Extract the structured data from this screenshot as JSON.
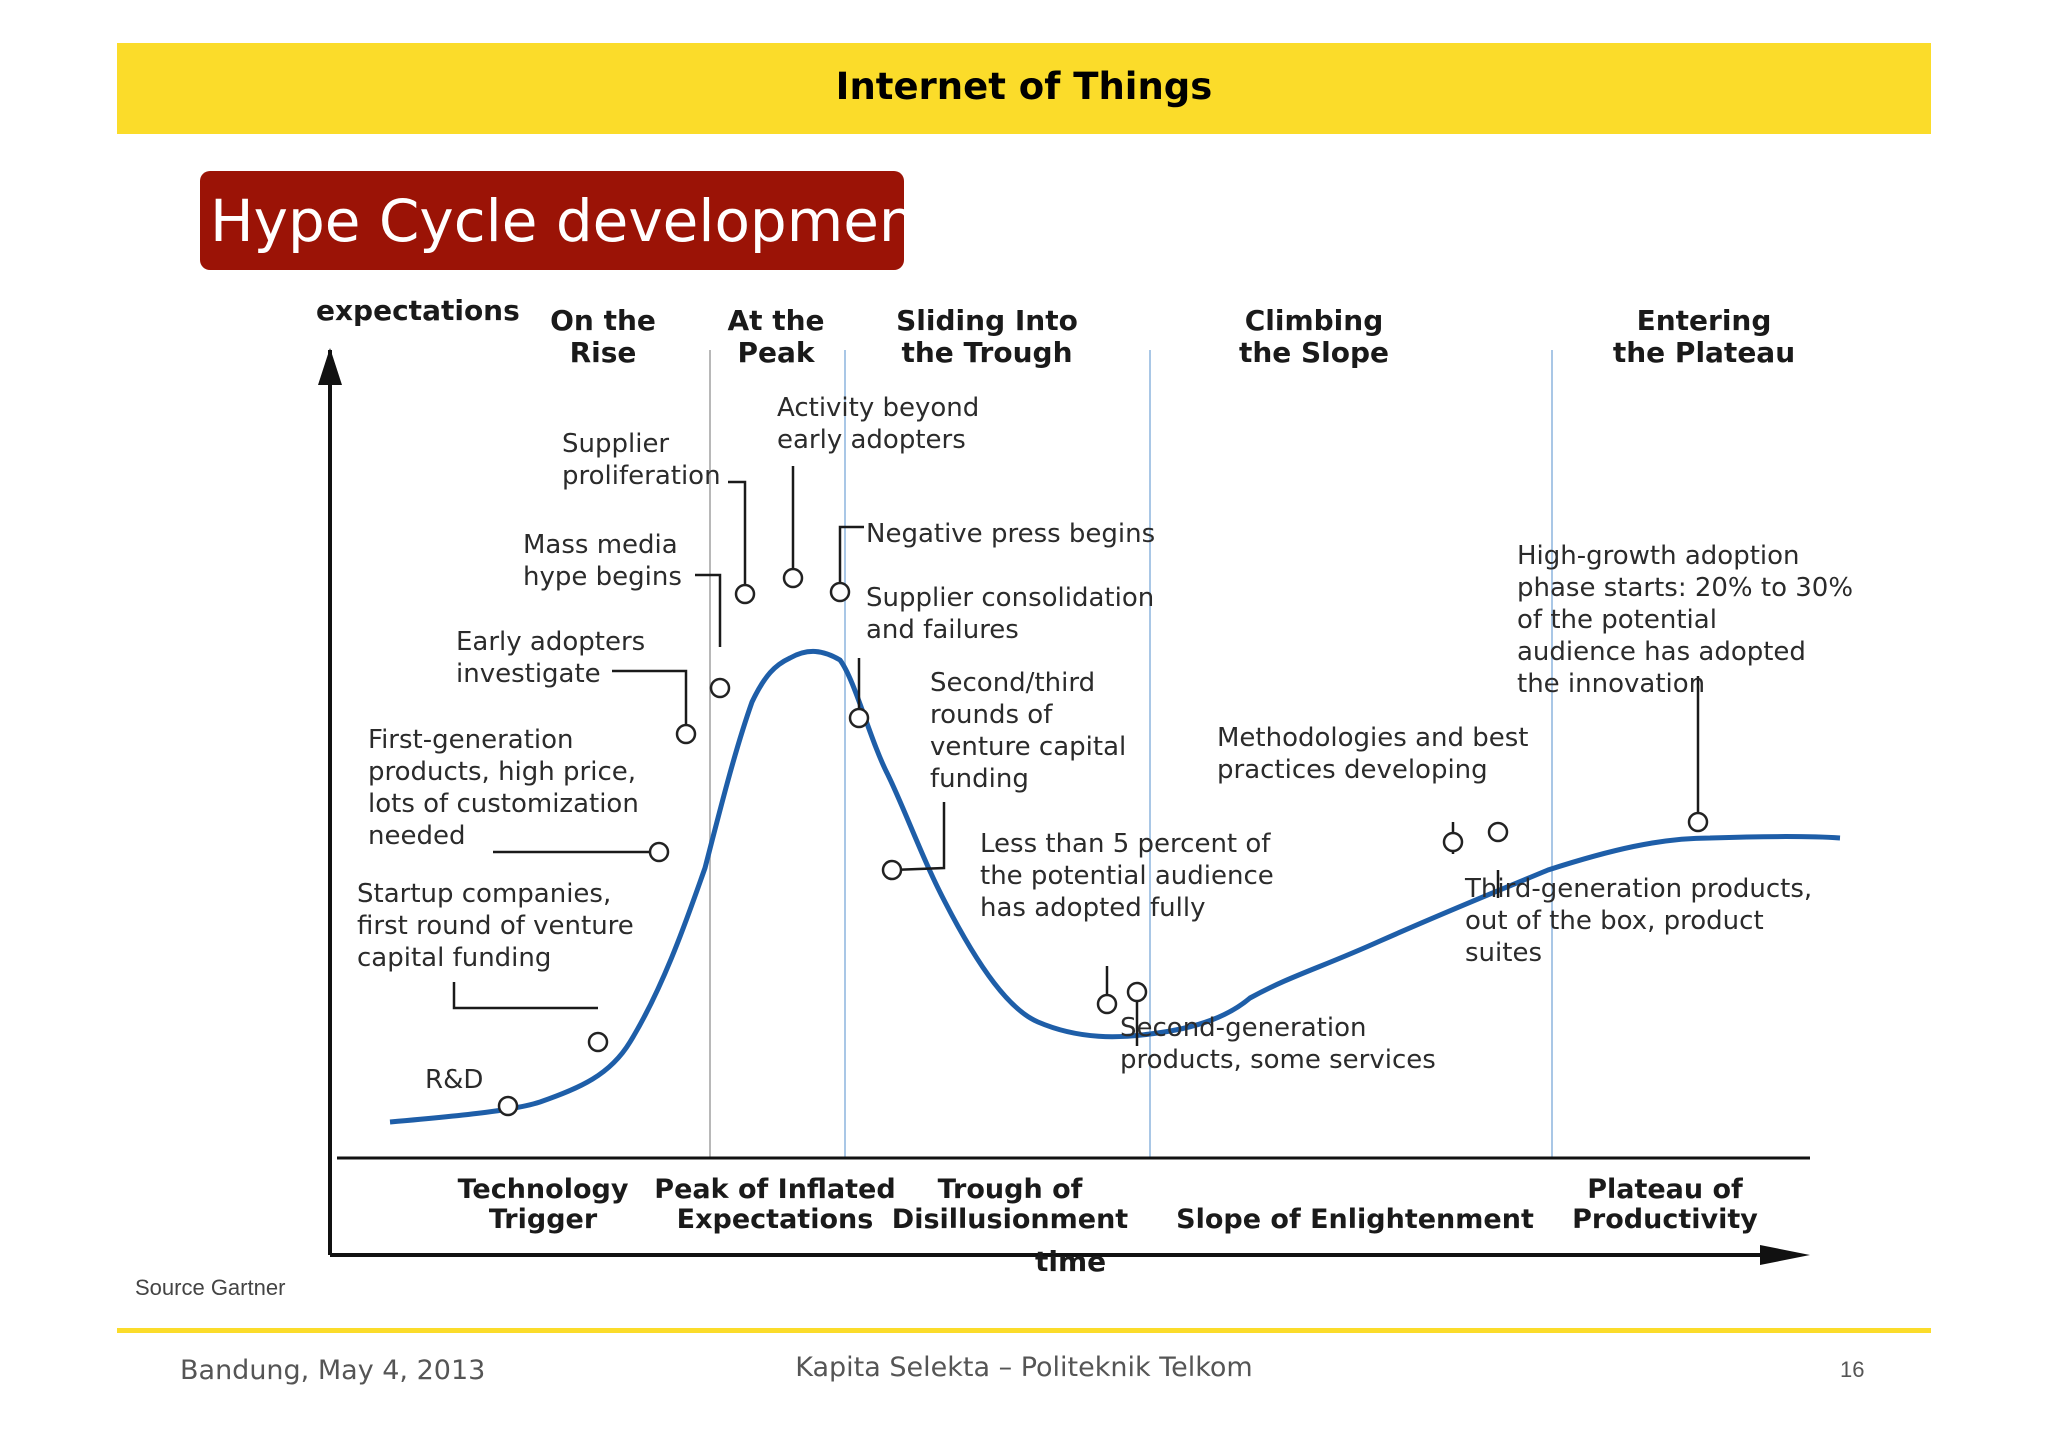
{
  "header": {
    "title": "Internet of Things"
  },
  "slide": {
    "title": "Hype Cycle development"
  },
  "diagram": {
    "y_axis_label": "expectations",
    "x_axis_label": "time",
    "top_headers": [
      "On the|Rise",
      "At the|Peak",
      "Sliding Into|the Trough",
      "Climbing|the Slope",
      "Entering|the Plateau"
    ],
    "phases": [
      "Technology|Trigger",
      "Peak of Inflated|Expectations",
      "Trough of|Disillusionment",
      "Slope of Enlightenment",
      "Plateau of|Productivity"
    ],
    "annotations": [
      "R&D",
      "Startup companies,|first round of venture|capital funding",
      "First-generation|products, high price,|lots of customization|needed",
      "Early adopters|investigate",
      "Mass media|hype begins",
      "Supplier|proliferation",
      "Activity beyond|early adopters",
      "Negative press begins",
      "Supplier consolidation|and failures",
      "Second/third|rounds of|venture capital|funding",
      "Less than 5 percent of|the potential audience|has adopted fully",
      "Second-generation|products, some services",
      "Methodologies and best|practices developing",
      "Third-generation products,|out of the box, product|suites",
      "High-growth adoption|phase starts: 20% to 30%|of the potential|audience has adopted|the innovation"
    ],
    "colors": {
      "curve": "#1e5ea8",
      "divider": "#a9c7e6"
    }
  },
  "source": "Source Gartner",
  "footer": {
    "left": "Bandung, May 4, 2013",
    "center": "Kapita Selekta – Politeknik Telkom",
    "page": "16"
  }
}
